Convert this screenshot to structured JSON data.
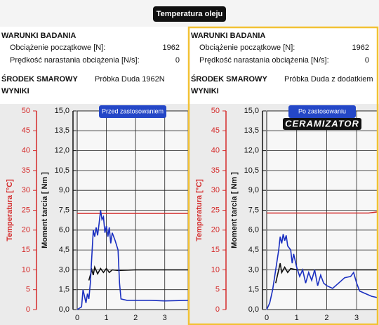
{
  "header": {
    "title": "Temperatura oleju"
  },
  "panels": [
    {
      "heading": "WARUNKI BADANIA",
      "rows": [
        {
          "label": "Obciążenie początkowe [N]:",
          "value": 1962
        },
        {
          "label": "Prędkość narastania obciążenia [N/s]:",
          "value": 0
        }
      ],
      "lubricant_label": "ŚRODEK SMAROWY",
      "lubricant": "Próbka Duda 1962N",
      "results": "WYNIKI"
    },
    {
      "heading": "WARUNKI BADANIA",
      "rows": [
        {
          "label": "Obciążenie początkowe [N]:",
          "value": 1962
        },
        {
          "label": "Prędkość narastania obciążenia [N/s]:",
          "value": 0
        }
      ],
      "lubricant_label": "ŚRODEK SMAROWY",
      "lubricant": "Próbka Duda z dodatkiem",
      "results": "WYNIKI"
    }
  ],
  "chart_data": [
    {
      "type": "line",
      "badge": "Przed zastosowaniem",
      "ylabel": "Temperatura [°C]",
      "y2label": "Moment tarcia [ Nm ]",
      "xlim": [
        0,
        3.8
      ],
      "xticks": [
        0,
        1,
        2,
        3
      ],
      "ylim": [
        0,
        50
      ],
      "yticks": [
        0,
        5,
        10,
        15,
        20,
        25,
        30,
        35,
        40,
        45,
        50
      ],
      "y2lim": [
        0,
        15
      ],
      "y2ticks": [
        {
          "value": 0,
          "label": "0,0"
        },
        {
          "value": 1.5,
          "label": "1,5"
        },
        {
          "value": 3,
          "label": "3,0"
        },
        {
          "value": 4.5,
          "label": "4,5"
        },
        {
          "value": 6,
          "label": "6,0"
        },
        {
          "value": 7.5,
          "label": "7,5"
        },
        {
          "value": 9,
          "label": "9,0"
        },
        {
          "value": 10.5,
          "label": "10,5"
        },
        {
          "value": 12,
          "label": "12,0"
        },
        {
          "value": 13.5,
          "label": "13,5"
        },
        {
          "value": 15,
          "label": "15,0"
        }
      ],
      "grid": true,
      "series": [
        {
          "color": "#d42a2a",
          "axis": "y",
          "x": [
            0,
            3.8
          ],
          "values": [
            24.2,
            24.2
          ]
        },
        {
          "color": "#111111",
          "axis": "y2",
          "x": [
            0.4,
            0.5,
            0.55,
            0.6,
            0.7,
            0.8,
            0.9,
            1.0,
            1.1,
            1.2,
            1.4,
            2.0,
            3.8
          ],
          "values": [
            2.2,
            3.0,
            2.6,
            3.2,
            2.7,
            3.1,
            2.8,
            3.1,
            2.8,
            3.0,
            2.95,
            3.0,
            3.0
          ]
        },
        {
          "color": "#1a2fc0",
          "axis": "y2",
          "x": [
            0,
            0.15,
            0.2,
            0.3,
            0.35,
            0.4,
            0.45,
            0.5,
            0.55,
            0.6,
            0.65,
            0.7,
            0.75,
            0.8,
            0.85,
            0.9,
            0.95,
            1.0,
            1.05,
            1.1,
            1.15,
            1.2,
            1.3,
            1.4,
            1.45,
            1.5,
            1.7,
            2.0,
            2.5,
            3.0,
            3.8
          ],
          "values": [
            0,
            0.2,
            1.5,
            0.5,
            1.2,
            0.8,
            2.0,
            4.0,
            6.0,
            5.5,
            6.2,
            5.6,
            6.5,
            7.5,
            6.8,
            7.0,
            5.8,
            6.3,
            5.5,
            6.2,
            5.0,
            5.8,
            5.2,
            4.5,
            2.0,
            0.8,
            0.7,
            0.7,
            0.7,
            0.65,
            0.7
          ]
        }
      ]
    },
    {
      "type": "line",
      "badge": "Po zastosowaniu",
      "logo": "CERAMIZATOR",
      "ylabel": "Temperatura [°C]",
      "y2label": "Moment tarcia [ Nm ]",
      "xlim": [
        0,
        3.7
      ],
      "xticks": [
        0,
        1,
        2,
        3
      ],
      "ylim": [
        0,
        50
      ],
      "yticks": [
        0,
        5,
        10,
        15,
        20,
        25,
        30,
        35,
        40,
        45,
        50
      ],
      "y2lim": [
        0,
        15
      ],
      "y2ticks": [
        {
          "value": 0,
          "label": "0,0"
        },
        {
          "value": 1.5,
          "label": "1,5"
        },
        {
          "value": 3,
          "label": "3,0"
        },
        {
          "value": 4.5,
          "label": "4,5"
        },
        {
          "value": 6,
          "label": "6,0"
        },
        {
          "value": 7.5,
          "label": "7,5"
        },
        {
          "value": 9,
          "label": "9,0"
        },
        {
          "value": 10.5,
          "label": "10,5"
        },
        {
          "value": 12,
          "label": "12,0"
        },
        {
          "value": 13.5,
          "label": "13,5"
        },
        {
          "value": 15,
          "label": "15,0"
        }
      ],
      "grid": true,
      "series": [
        {
          "color": "#d42a2a",
          "axis": "y",
          "x": [
            0,
            3.4,
            3.7
          ],
          "values": [
            24.3,
            24.3,
            24.6
          ]
        },
        {
          "color": "#111111",
          "axis": "y2",
          "x": [
            0.3,
            0.4,
            0.45,
            0.5,
            0.6,
            0.7,
            0.8,
            1.0,
            3.7
          ],
          "values": [
            2.0,
            3.0,
            3.5,
            2.8,
            3.2,
            2.8,
            3.1,
            3.0,
            3.0
          ]
        },
        {
          "color": "#1a2fc0",
          "axis": "y2",
          "x": [
            0,
            0.1,
            0.2,
            0.3,
            0.4,
            0.45,
            0.5,
            0.55,
            0.6,
            0.65,
            0.7,
            0.8,
            0.85,
            0.9,
            1.0,
            1.1,
            1.2,
            1.3,
            1.4,
            1.5,
            1.6,
            1.7,
            1.8,
            1.9,
            2.0,
            2.2,
            2.4,
            2.6,
            2.8,
            2.9,
            3.0,
            3.1,
            3.3,
            3.5,
            3.7
          ],
          "values": [
            0,
            0.5,
            1.5,
            3.0,
            4.5,
            5.5,
            5.0,
            5.7,
            5.2,
            5.6,
            4.8,
            4.5,
            3.5,
            4.2,
            3.2,
            2.5,
            3.0,
            2.0,
            2.8,
            2.2,
            3.0,
            1.8,
            2.6,
            2.0,
            1.8,
            1.6,
            2.0,
            2.4,
            2.5,
            2.8,
            2.0,
            1.4,
            1.2,
            1.0,
            0.9
          ]
        }
      ]
    }
  ]
}
